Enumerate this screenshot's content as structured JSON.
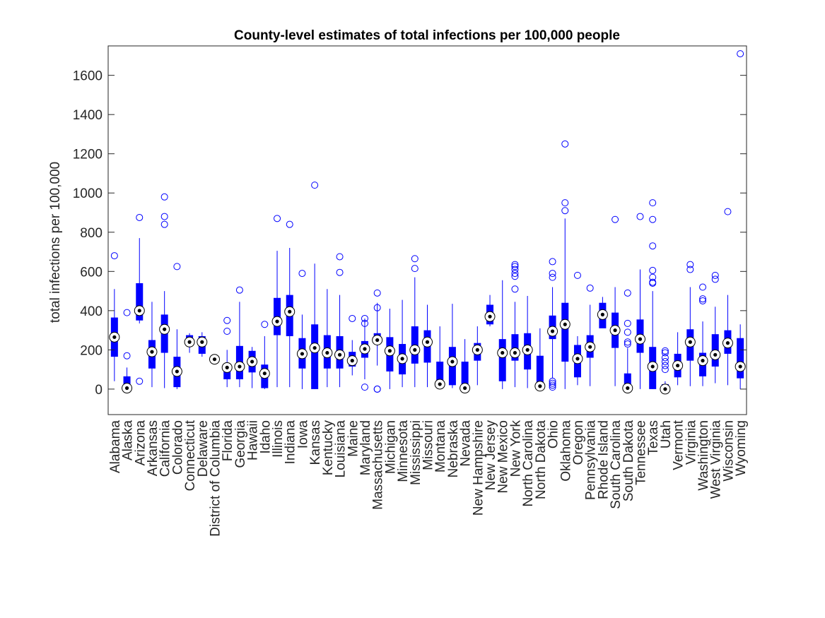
{
  "chart_data": {
    "type": "box",
    "title": "County-level estimates of total infections per 100,000 people",
    "xlabel": "",
    "ylabel": "total infections per 100,000",
    "ylim": [
      -130,
      1750
    ],
    "yticks": [
      0,
      200,
      400,
      600,
      800,
      1000,
      1200,
      1400,
      1600
    ],
    "grid": false,
    "colors": {
      "box": "#0000ff",
      "median_fill": "#000000",
      "median_ring": "#000000",
      "axes": "#262626"
    },
    "categories": [
      "Alabama",
      "Alaska",
      "Arizona",
      "Arkansas",
      "California",
      "Colorado",
      "Connecticut",
      "Delaware",
      "District of Columbia",
      "Florida",
      "Georgia",
      "Hawaii",
      "Idaho",
      "Illinois",
      "Indiana",
      "Iowa",
      "Kansas",
      "Kentucky",
      "Louisiana",
      "Maine",
      "Maryland",
      "Massachusetts",
      "Michigan",
      "Minnesota",
      "Mississippi",
      "Missouri",
      "Montana",
      "Nebraska",
      "Nevada",
      "New Hampshire",
      "New Jersey",
      "New Mexico",
      "New York",
      "North Carolina",
      "North Dakota",
      "Ohio",
      "Oklahoma",
      "Oregon",
      "Pennsylvania",
      "Rhode Island",
      "South Carolina",
      "South Dakota",
      "Tennessee",
      "Texas",
      "Utah",
      "Vermont",
      "Virginia",
      "Washington",
      "West Virginia",
      "Wisconsin",
      "Wyoming"
    ],
    "boxes": [
      {
        "wlo": 40,
        "q1": 165,
        "median": 265,
        "q3": 365,
        "whi": 510,
        "outliers": [
          680
        ]
      },
      {
        "wlo": 0,
        "q1": 0,
        "median": 5,
        "q3": 65,
        "whi": 110,
        "outliers": [
          170,
          390
        ]
      },
      {
        "wlo": 335,
        "q1": 350,
        "median": 400,
        "q3": 540,
        "whi": 770,
        "outliers": [
          40,
          875
        ]
      },
      {
        "wlo": 10,
        "q1": 105,
        "median": 190,
        "q3": 250,
        "whi": 445,
        "outliers": []
      },
      {
        "wlo": 5,
        "q1": 185,
        "median": 305,
        "q3": 380,
        "whi": 500,
        "outliers": [
          840,
          880,
          980
        ]
      },
      {
        "wlo": 0,
        "q1": 10,
        "median": 90,
        "q3": 165,
        "whi": 305,
        "outliers": [
          625
        ]
      },
      {
        "wlo": 185,
        "q1": 220,
        "median": 240,
        "q3": 275,
        "whi": 285,
        "outliers": []
      },
      {
        "wlo": 165,
        "q1": 180,
        "median": 240,
        "q3": 270,
        "whi": 290,
        "outliers": []
      },
      {
        "wlo": 152,
        "q1": 152,
        "median": 152,
        "q3": 152,
        "whi": 152,
        "outliers": []
      },
      {
        "wlo": 10,
        "q1": 50,
        "median": 110,
        "q3": 125,
        "whi": 200,
        "outliers": [
          295,
          350
        ]
      },
      {
        "wlo": 10,
        "q1": 50,
        "median": 115,
        "q3": 220,
        "whi": 445,
        "outliers": [
          505
        ]
      },
      {
        "wlo": 5,
        "q1": 85,
        "median": 140,
        "q3": 195,
        "whi": 215,
        "outliers": []
      },
      {
        "wlo": 0,
        "q1": 5,
        "median": 80,
        "q3": 125,
        "whi": 270,
        "outliers": [
          330
        ]
      },
      {
        "wlo": 10,
        "q1": 275,
        "median": 345,
        "q3": 465,
        "whi": 705,
        "outliers": [
          870
        ]
      },
      {
        "wlo": 10,
        "q1": 270,
        "median": 395,
        "q3": 480,
        "whi": 720,
        "outliers": [
          840
        ]
      },
      {
        "wlo": 0,
        "q1": 105,
        "median": 180,
        "q3": 260,
        "whi": 380,
        "outliers": [
          590
        ]
      },
      {
        "wlo": 0,
        "q1": 0,
        "median": 210,
        "q3": 330,
        "whi": 640,
        "outliers": [
          1040
        ]
      },
      {
        "wlo": 10,
        "q1": 105,
        "median": 185,
        "q3": 275,
        "whi": 510,
        "outliers": []
      },
      {
        "wlo": 10,
        "q1": 105,
        "median": 175,
        "q3": 270,
        "whi": 480,
        "outliers": [
          595,
          675
        ]
      },
      {
        "wlo": 70,
        "q1": 115,
        "median": 145,
        "q3": 190,
        "whi": 250,
        "outliers": [
          360
        ]
      },
      {
        "wlo": 50,
        "q1": 160,
        "median": 205,
        "q3": 245,
        "whi": 360,
        "outliers": [
          10,
          335,
          360
        ]
      },
      {
        "wlo": 120,
        "q1": 240,
        "median": 250,
        "q3": 285,
        "whi": 440,
        "outliers": [
          0,
          0,
          415,
          490
        ]
      },
      {
        "wlo": 0,
        "q1": 90,
        "median": 195,
        "q3": 265,
        "whi": 410,
        "outliers": []
      },
      {
        "wlo": 10,
        "q1": 75,
        "median": 155,
        "q3": 230,
        "whi": 455,
        "outliers": []
      },
      {
        "wlo": 10,
        "q1": 130,
        "median": 200,
        "q3": 320,
        "whi": 570,
        "outliers": [
          615,
          665
        ]
      },
      {
        "wlo": 10,
        "q1": 135,
        "median": 240,
        "q3": 300,
        "whi": 430,
        "outliers": []
      },
      {
        "wlo": 10,
        "q1": 10,
        "median": 25,
        "q3": 140,
        "whi": 320,
        "outliers": []
      },
      {
        "wlo": 5,
        "q1": 20,
        "median": 140,
        "q3": 215,
        "whi": 435,
        "outliers": []
      },
      {
        "wlo": 0,
        "q1": 0,
        "median": 5,
        "q3": 140,
        "whi": 255,
        "outliers": []
      },
      {
        "wlo": 20,
        "q1": 145,
        "median": 200,
        "q3": 235,
        "whi": 320,
        "outliers": []
      },
      {
        "wlo": 320,
        "q1": 330,
        "median": 370,
        "q3": 430,
        "whi": 480,
        "outliers": []
      },
      {
        "wlo": 0,
        "q1": 40,
        "median": 185,
        "q3": 255,
        "whi": 555,
        "outliers": []
      },
      {
        "wlo": 10,
        "q1": 145,
        "median": 185,
        "q3": 280,
        "whi": 445,
        "outliers": [
          510,
          575,
          590,
          610,
          625,
          635
        ]
      },
      {
        "wlo": 5,
        "q1": 100,
        "median": 200,
        "q3": 285,
        "whi": 475,
        "outliers": []
      },
      {
        "wlo": 0,
        "q1": 10,
        "median": 15,
        "q3": 170,
        "whi": 310,
        "outliers": []
      },
      {
        "wlo": 55,
        "q1": 255,
        "median": 295,
        "q3": 375,
        "whi": 520,
        "outliers": [
          10,
          20,
          30,
          40,
          570,
          590,
          650
        ]
      },
      {
        "wlo": 0,
        "q1": 140,
        "median": 330,
        "q3": 440,
        "whi": 870,
        "outliers": [
          910,
          950,
          1250
        ]
      },
      {
        "wlo": 20,
        "q1": 60,
        "median": 155,
        "q3": 225,
        "whi": 270,
        "outliers": [
          580
        ]
      },
      {
        "wlo": 15,
        "q1": 160,
        "median": 215,
        "q3": 275,
        "whi": 430,
        "outliers": [
          515
        ]
      },
      {
        "wlo": 330,
        "q1": 310,
        "median": 380,
        "q3": 440,
        "whi": 470,
        "outliers": []
      },
      {
        "wlo": 15,
        "q1": 210,
        "median": 300,
        "q3": 390,
        "whi": 520,
        "outliers": [
          865
        ]
      },
      {
        "wlo": 0,
        "q1": 0,
        "median": 5,
        "q3": 80,
        "whi": 210,
        "outliers": [
          230,
          240,
          290,
          335,
          490
        ]
      },
      {
        "wlo": 0,
        "q1": 185,
        "median": 255,
        "q3": 355,
        "whi": 610,
        "outliers": [
          880
        ]
      },
      {
        "wlo": 0,
        "q1": 0,
        "median": 115,
        "q3": 215,
        "whi": 500,
        "outliers": [
          540,
          545,
          570,
          605,
          730,
          865,
          950
        ]
      },
      {
        "wlo": 0,
        "q1": 0,
        "median": 0,
        "q3": 25,
        "whi": 40,
        "outliers": [
          100,
          120,
          140,
          160,
          185,
          195
        ]
      },
      {
        "wlo": 20,
        "q1": 60,
        "median": 120,
        "q3": 180,
        "whi": 290,
        "outliers": []
      },
      {
        "wlo": 15,
        "q1": 145,
        "median": 240,
        "q3": 305,
        "whi": 520,
        "outliers": [
          610,
          635
        ]
      },
      {
        "wlo": 15,
        "q1": 65,
        "median": 145,
        "q3": 185,
        "whi": 345,
        "outliers": [
          450,
          460,
          520
        ]
      },
      {
        "wlo": 30,
        "q1": 115,
        "median": 175,
        "q3": 280,
        "whi": 420,
        "outliers": [
          560,
          580
        ]
      },
      {
        "wlo": 20,
        "q1": 180,
        "median": 235,
        "q3": 300,
        "whi": 480,
        "outliers": [
          905
        ]
      },
      {
        "wlo": 0,
        "q1": 55,
        "median": 115,
        "q3": 260,
        "whi": 330,
        "outliers": [
          1710
        ]
      }
    ]
  }
}
